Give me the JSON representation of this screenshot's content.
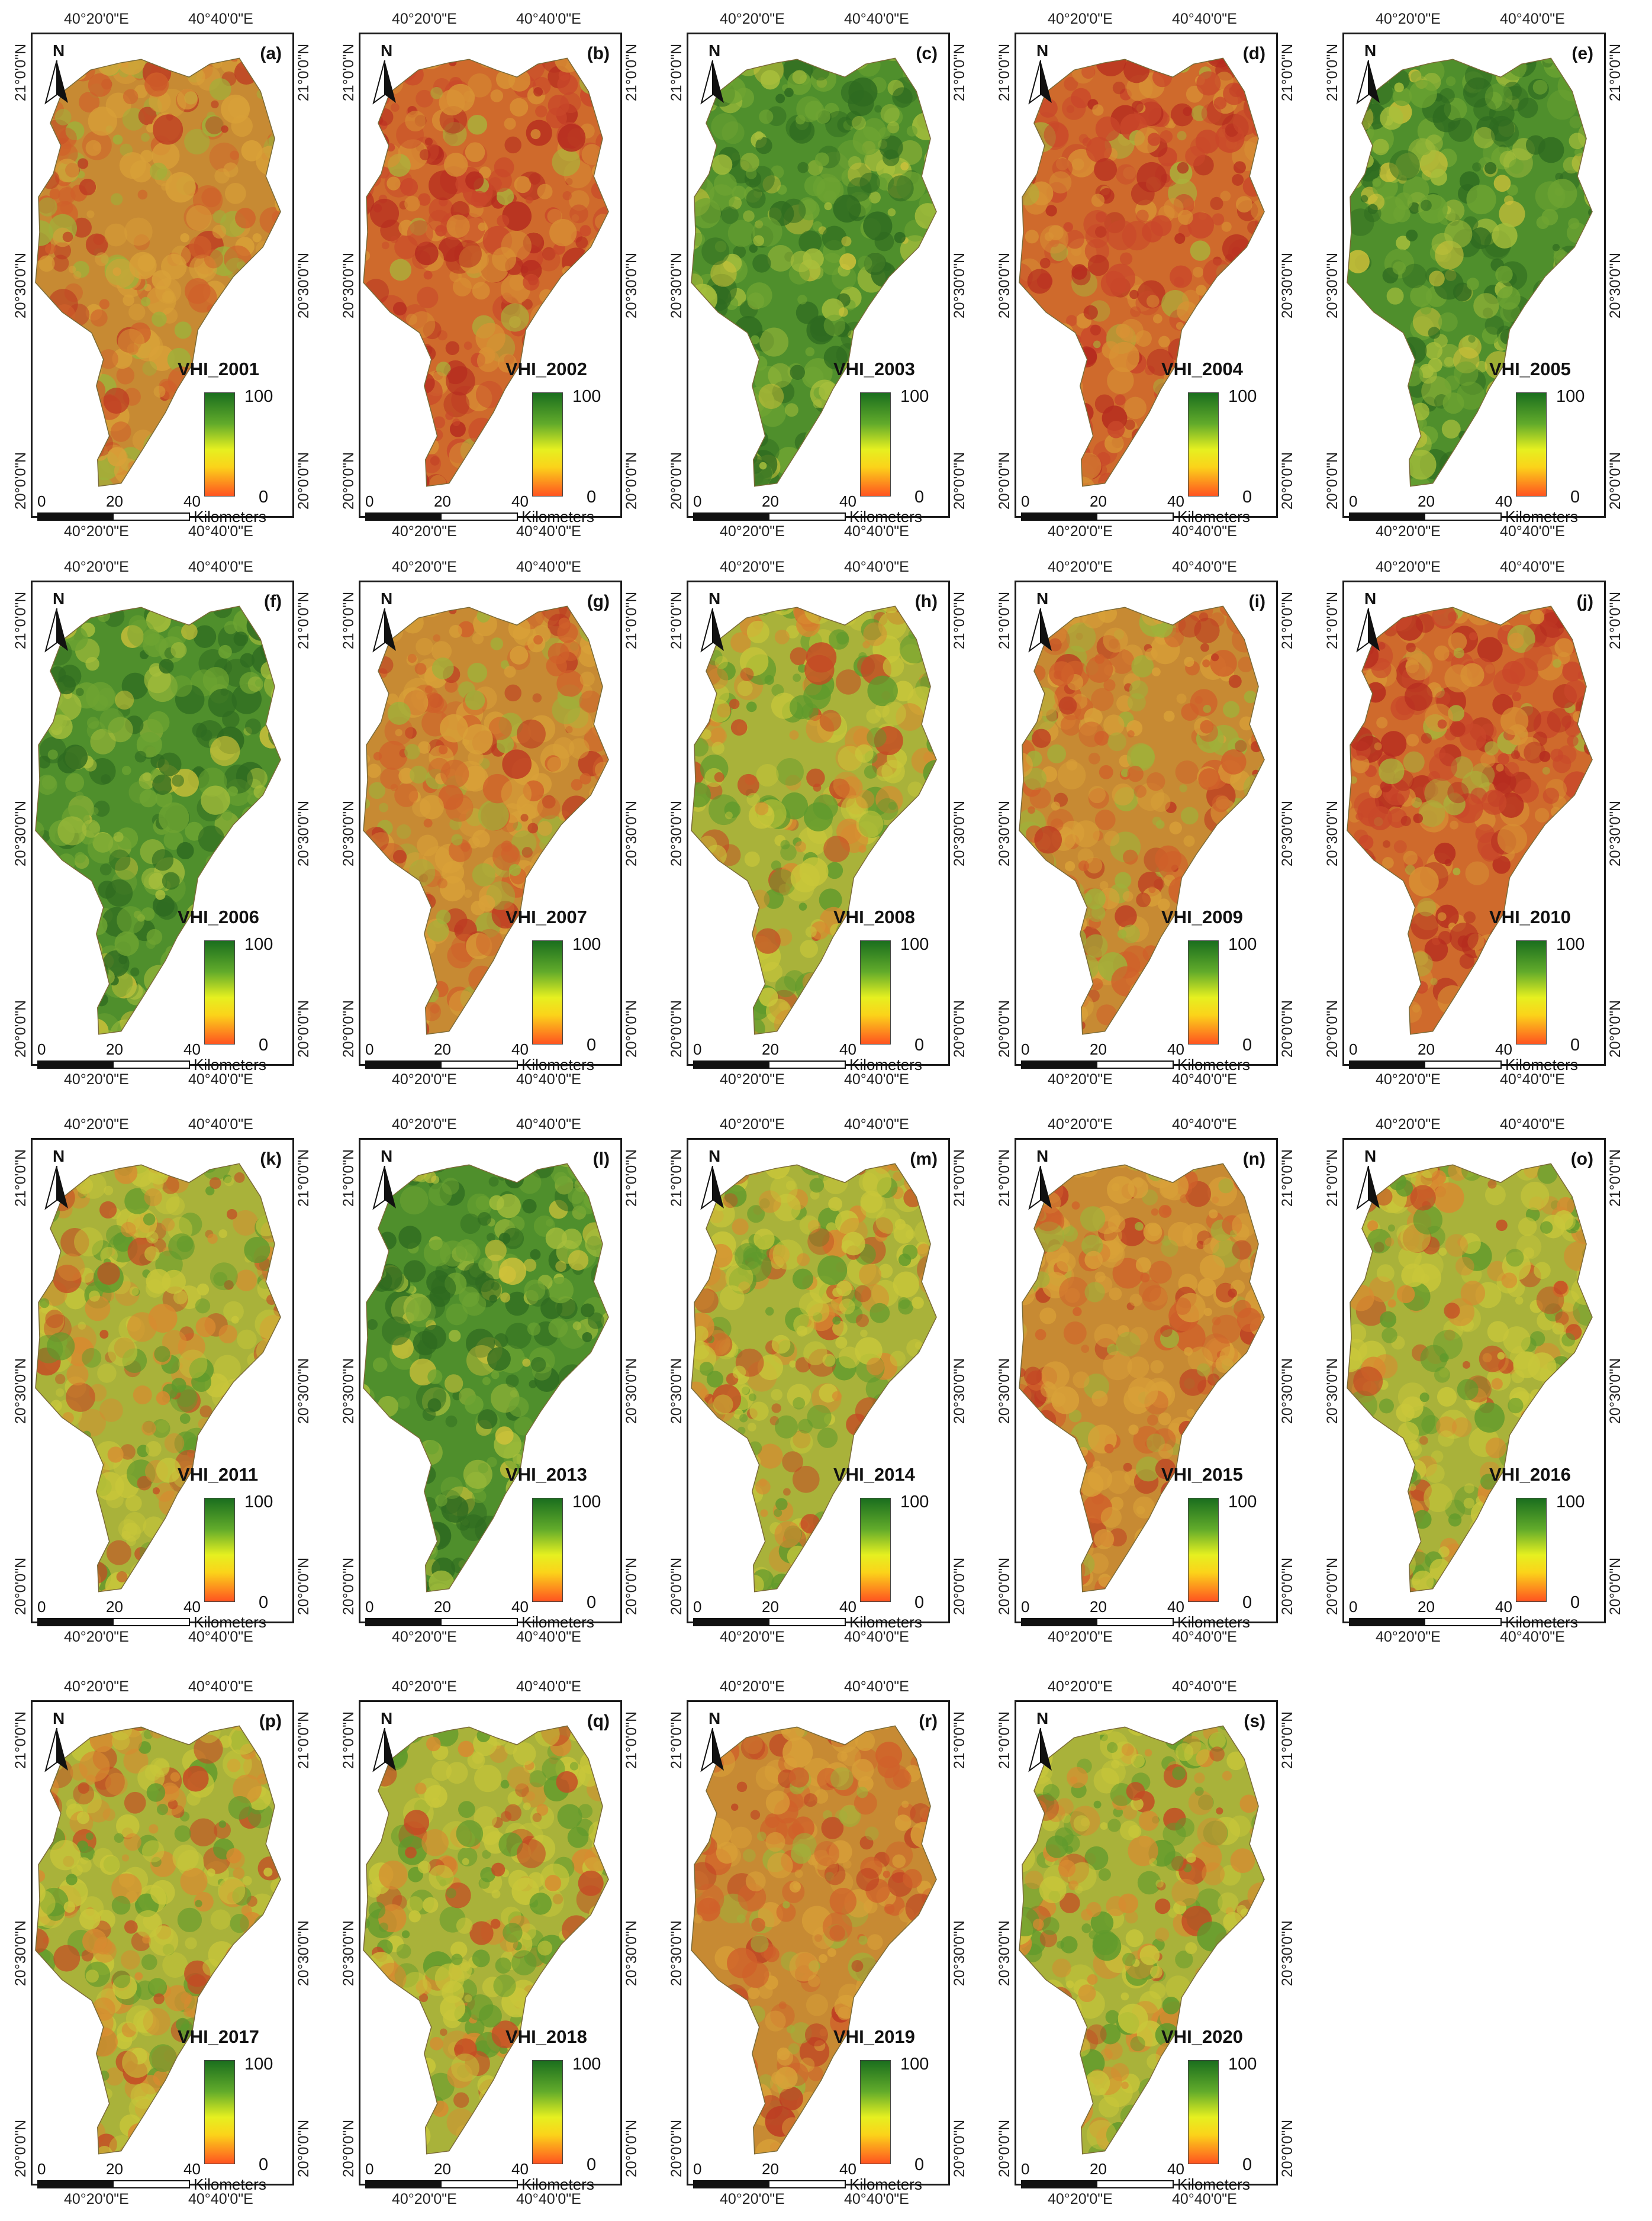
{
  "figure": {
    "panels": [
      {
        "label": "(a)",
        "title": "VHI_2001",
        "scheme": "dry"
      },
      {
        "label": "(b)",
        "title": "VHI_2002",
        "scheme": "verydry"
      },
      {
        "label": "(c)",
        "title": "VHI_2003",
        "scheme": "wet"
      },
      {
        "label": "(d)",
        "title": "VHI_2004",
        "scheme": "verydry"
      },
      {
        "label": "(e)",
        "title": "VHI_2005",
        "scheme": "wet"
      },
      {
        "label": "(f)",
        "title": "VHI_2006",
        "scheme": "wet"
      },
      {
        "label": "(g)",
        "title": "VHI_2007",
        "scheme": "dry"
      },
      {
        "label": "(h)",
        "title": "VHI_2008",
        "scheme": "mixed"
      },
      {
        "label": "(i)",
        "title": "VHI_2009",
        "scheme": "dry"
      },
      {
        "label": "(j)",
        "title": "VHI_2010",
        "scheme": "verydry"
      },
      {
        "label": "(k)",
        "title": "VHI_2011",
        "scheme": "mixed"
      },
      {
        "label": "(l)",
        "title": "VHI_2013",
        "scheme": "wet"
      },
      {
        "label": "(m)",
        "title": "VHI_2014",
        "scheme": "mixed"
      },
      {
        "label": "(n)",
        "title": "VHI_2015",
        "scheme": "dry"
      },
      {
        "label": "(o)",
        "title": "VHI_2016",
        "scheme": "mixed"
      },
      {
        "label": "(p)",
        "title": "VHI_2017",
        "scheme": "mixed"
      },
      {
        "label": "(q)",
        "title": "VHI_2018",
        "scheme": "mixed"
      },
      {
        "label": "(r)",
        "title": "VHI_2019",
        "scheme": "dry"
      },
      {
        "label": "(s)",
        "title": "VHI_2020",
        "scheme": "mixed"
      }
    ],
    "axis_labels": {
      "lon_west": "40°20'0\"E",
      "lon_east": "40°40'0\"E",
      "lat_north": "21°0'0\"N",
      "lat_mid": "20°30'0\"N",
      "lat_south": "20°0'0\"N"
    },
    "legend": {
      "max": "100",
      "min": "0"
    },
    "scalebar": {
      "ticks": [
        "0",
        "20",
        "40"
      ],
      "unit": "Kilometers"
    },
    "north_letter": "N",
    "colors": {
      "green_dark": "#1f6a22",
      "green": "#5f9a2c",
      "yellow": "#d5cc3a",
      "orange": "#d77a2c",
      "red": "#c13e22"
    }
  }
}
